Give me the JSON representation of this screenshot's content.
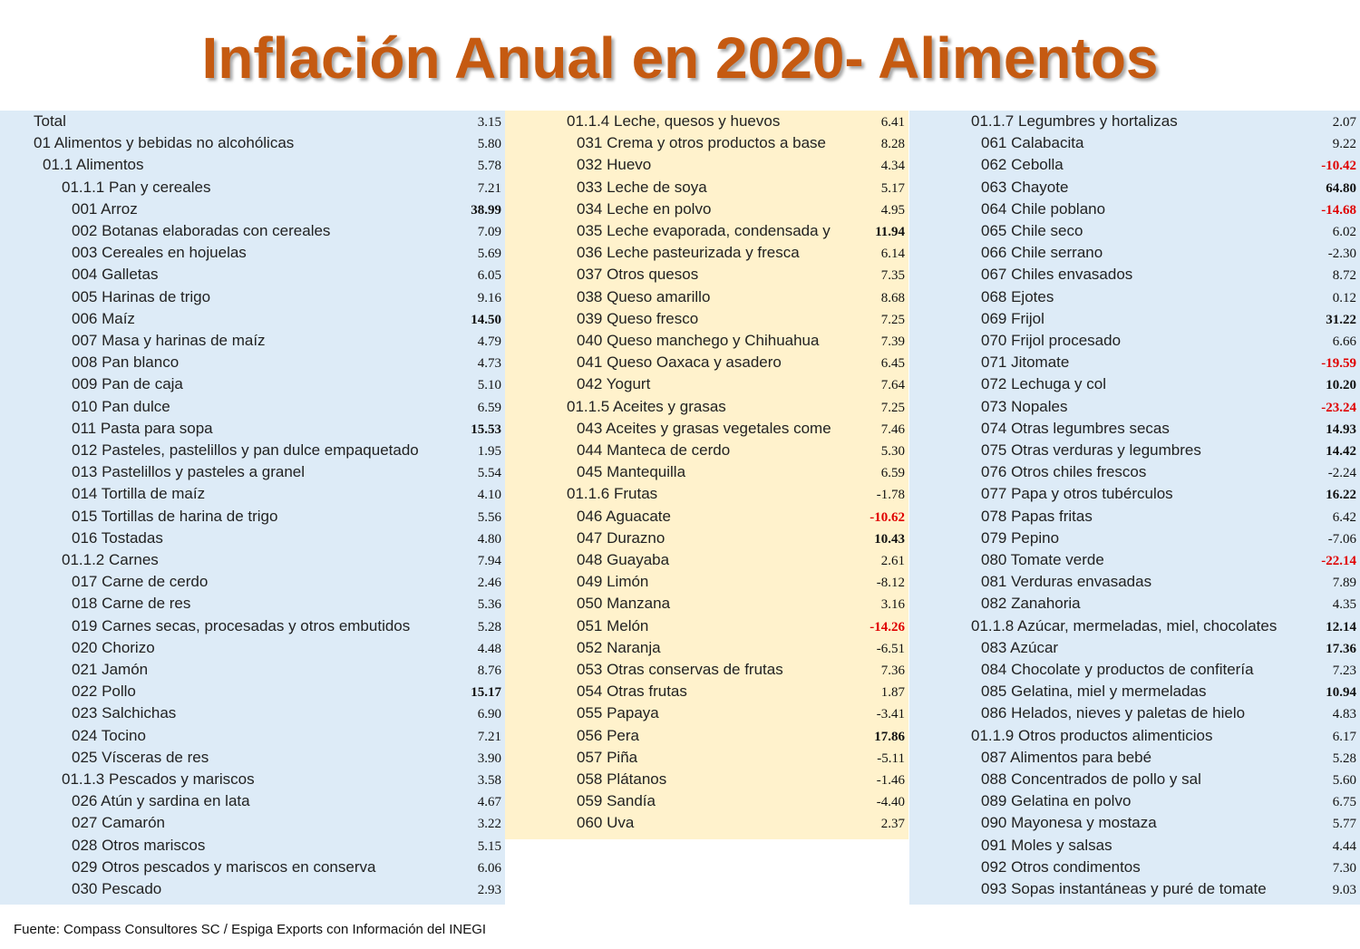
{
  "header": {
    "title": "Inflación Anual en 2020- Alimentos"
  },
  "columns": [
    {
      "rows": [
        [
          "Total",
          "3.15"
        ],
        [
          "01 Alimentos y bebidas no alcohólicas",
          "5.80"
        ],
        [
          "01.1 Alimentos",
          "5.78"
        ],
        [
          "01.1.1 Pan y cereales",
          "7.21"
        ],
        [
          "001 Arroz",
          "38.99"
        ],
        [
          "002 Botanas elaboradas con cereales",
          "7.09"
        ],
        [
          "003 Cereales en hojuelas",
          "5.69"
        ],
        [
          "004 Galletas",
          "6.05"
        ],
        [
          "005 Harinas de trigo",
          "9.16"
        ],
        [
          "006 Maíz",
          "14.50"
        ],
        [
          "007 Masa y harinas de maíz",
          "4.79"
        ],
        [
          "008 Pan blanco",
          "4.73"
        ],
        [
          "009 Pan de caja",
          "5.10"
        ],
        [
          "010 Pan dulce",
          "6.59"
        ],
        [
          "011 Pasta para sopa",
          "15.53"
        ],
        [
          "012 Pasteles, pastelillos y pan dulce empaquetado",
          "1.95"
        ],
        [
          "013 Pastelillos y pasteles a granel",
          "5.54"
        ],
        [
          "014 Tortilla de maíz",
          "4.10"
        ],
        [
          "015 Tortillas de harina de trigo",
          "5.56"
        ],
        [
          "016 Tostadas",
          "4.80"
        ],
        [
          "01.1.2 Carnes",
          "7.94"
        ],
        [
          "017 Carne de cerdo",
          "2.46"
        ],
        [
          "018 Carne de res",
          "5.36"
        ],
        [
          "019 Carnes secas, procesadas y otros embutidos",
          "5.28"
        ],
        [
          "020 Chorizo",
          "4.48"
        ],
        [
          "021 Jamón",
          "8.76"
        ],
        [
          "022 Pollo",
          "15.17"
        ],
        [
          "023 Salchichas",
          "6.90"
        ],
        [
          "024 Tocino",
          "7.21"
        ],
        [
          "025 Vísceras de res",
          "3.90"
        ],
        [
          "01.1.3 Pescados y mariscos",
          "3.58"
        ],
        [
          "026 Atún y sardina en lata",
          "4.67"
        ],
        [
          "027 Camarón",
          "3.22"
        ],
        [
          "028 Otros mariscos",
          "5.15"
        ],
        [
          "029 Otros pescados y mariscos en conserva",
          "6.06"
        ],
        [
          "030 Pescado",
          "2.93"
        ]
      ]
    },
    {
      "rows": [
        [
          "01.1.4 Leche, quesos y huevos",
          "6.41"
        ],
        [
          "031 Crema y otros productos a base",
          "8.28"
        ],
        [
          "032 Huevo",
          "4.34"
        ],
        [
          "033 Leche de soya",
          "5.17"
        ],
        [
          "034 Leche en polvo",
          "4.95"
        ],
        [
          "035 Leche evaporada, condensada y",
          "11.94"
        ],
        [
          "036 Leche pasteurizada y fresca",
          "6.14"
        ],
        [
          "037 Otros quesos",
          "7.35"
        ],
        [
          "038 Queso amarillo",
          "8.68"
        ],
        [
          "039 Queso fresco",
          "7.25"
        ],
        [
          "040 Queso manchego y Chihuahua",
          "7.39"
        ],
        [
          "041 Queso Oaxaca y asadero",
          "6.45"
        ],
        [
          "042 Yogurt",
          "7.64"
        ],
        [
          "01.1.5 Aceites y grasas",
          "7.25"
        ],
        [
          "043 Aceites y grasas vegetales come",
          "7.46"
        ],
        [
          "044 Manteca de cerdo",
          "5.30"
        ],
        [
          "045 Mantequilla",
          "6.59"
        ],
        [
          "01.1.6 Frutas",
          "-1.78"
        ],
        [
          "046 Aguacate",
          "-10.62"
        ],
        [
          "047 Durazno",
          "10.43"
        ],
        [
          "048 Guayaba",
          "2.61"
        ],
        [
          "049 Limón",
          "-8.12"
        ],
        [
          "050 Manzana",
          "3.16"
        ],
        [
          "051 Melón",
          "-14.26"
        ],
        [
          "052 Naranja",
          "-6.51"
        ],
        [
          "053 Otras conservas de frutas",
          "7.36"
        ],
        [
          "054 Otras frutas",
          "1.87"
        ],
        [
          "055 Papaya",
          "-3.41"
        ],
        [
          "056 Pera",
          "17.86"
        ],
        [
          "057 Piña",
          "-5.11"
        ],
        [
          "058 Plátanos",
          "-1.46"
        ],
        [
          "059 Sandía",
          "-4.40"
        ],
        [
          "060 Uva",
          "2.37"
        ]
      ]
    },
    {
      "rows": [
        [
          "01.1.7 Legumbres y hortalizas",
          "2.07"
        ],
        [
          "061 Calabacita",
          "9.22"
        ],
        [
          "062 Cebolla",
          "-10.42"
        ],
        [
          "063 Chayote",
          "64.80"
        ],
        [
          "064 Chile poblano",
          "-14.68"
        ],
        [
          "065 Chile seco",
          "6.02"
        ],
        [
          "066 Chile serrano",
          "-2.30"
        ],
        [
          "067 Chiles envasados",
          "8.72"
        ],
        [
          "068 Ejotes",
          "0.12"
        ],
        [
          "069 Frijol",
          "31.22"
        ],
        [
          "070 Frijol procesado",
          "6.66"
        ],
        [
          "071 Jitomate",
          "-19.59"
        ],
        [
          "072 Lechuga y col",
          "10.20"
        ],
        [
          "073 Nopales",
          "-23.24"
        ],
        [
          "074 Otras legumbres secas",
          "14.93"
        ],
        [
          "075 Otras verduras y legumbres",
          "14.42"
        ],
        [
          "076 Otros chiles frescos",
          "-2.24"
        ],
        [
          "077 Papa y otros tubérculos",
          "16.22"
        ],
        [
          "078 Papas fritas",
          "6.42"
        ],
        [
          "079 Pepino",
          "-7.06"
        ],
        [
          "080 Tomate verde",
          "-22.14"
        ],
        [
          "081 Verduras envasadas",
          "7.89"
        ],
        [
          "082 Zanahoria",
          "4.35"
        ],
        [
          "01.1.8 Azúcar, mermeladas, miel, chocolates",
          "12.14"
        ],
        [
          "083 Azúcar",
          "17.36"
        ],
        [
          "084 Chocolate y productos de confitería",
          "7.23"
        ],
        [
          "085 Gelatina, miel y mermeladas",
          "10.94"
        ],
        [
          "086 Helados, nieves y paletas de hielo",
          "4.83"
        ],
        [
          "01.1.9 Otros productos alimenticios",
          "6.17"
        ],
        [
          "087 Alimentos para bebé",
          "5.28"
        ],
        [
          "088 Concentrados de pollo y sal",
          "5.60"
        ],
        [
          "089 Gelatina en polvo",
          "6.75"
        ],
        [
          "090 Mayonesa y mostaza",
          "5.77"
        ],
        [
          "091 Moles y salsas",
          "4.44"
        ],
        [
          "092 Otros condimentos",
          "7.30"
        ],
        [
          "093 Sopas instantáneas y puré de tomate",
          "9.03"
        ]
      ]
    }
  ],
  "footer": {
    "source": "Fuente: Compass Consultores SC / Espiga Exports con Información del INEGI"
  }
}
